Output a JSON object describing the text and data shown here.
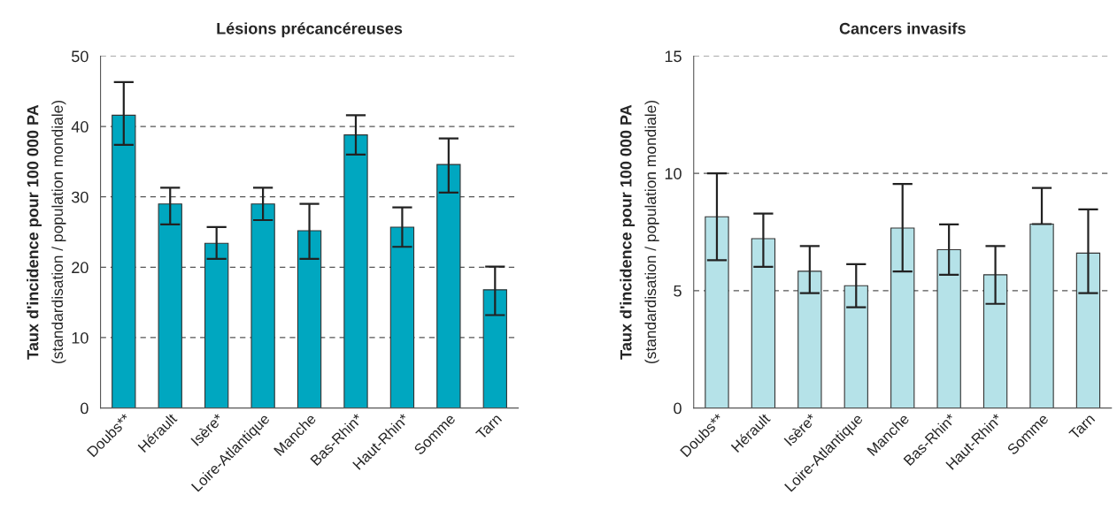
{
  "chart_data": [
    {
      "type": "bar",
      "title": "Lésions précancéreuses",
      "ylabel": "Taux d'incidence pour 100 000 PA\n(standardisation / population mondiale)",
      "categories": [
        "Doubs**",
        "Hérault",
        "Isère*",
        "Loire-Atlantique",
        "Manche",
        "Bas-Rhin*",
        "Haut-Rhin*",
        "Somme",
        "Tarn"
      ],
      "series": [
        {
          "color": "#00a7c0",
          "values": [
            41.6,
            29.0,
            23.4,
            29.0,
            25.2,
            38.8,
            25.7,
            34.6,
            16.8
          ],
          "errors": [
            [
              37.4,
              46.3
            ],
            [
              26.1,
              31.3
            ],
            [
              21.2,
              25.7
            ],
            [
              26.7,
              31.3
            ],
            [
              21.2,
              29.0
            ],
            [
              36.0,
              41.6
            ],
            [
              22.9,
              28.5
            ],
            [
              30.6,
              38.3
            ],
            [
              13.2,
              20.1
            ]
          ]
        }
      ],
      "ylim": [
        0,
        50
      ],
      "yticks": [
        0,
        10,
        20,
        30,
        40,
        50
      ],
      "grid": "y"
    },
    {
      "type": "bar",
      "title": "Cancers invasifs",
      "ylabel": "Taux d'incidence pour 100 000 PA\n(standardisation / population mondiale)",
      "categories": [
        "Doubs**",
        "Hérault",
        "Isère*",
        "Loire-Atlantique",
        "Manche",
        "Bas-Rhin*",
        "Haut-Rhin*",
        "Somme",
        "Tarn"
      ],
      "series": [
        {
          "color": "#b5e2e8",
          "values": [
            8.15,
            7.22,
            5.83,
            5.21,
            7.67,
            6.75,
            5.68,
            7.84,
            6.6
          ],
          "errors": [
            [
              6.3,
              10.0
            ],
            [
              6.02,
              8.29
            ],
            [
              4.9,
              6.9
            ],
            [
              4.29,
              6.13
            ],
            [
              5.82,
              9.55
            ],
            [
              5.68,
              7.83
            ],
            [
              4.44,
              6.9
            ],
            [
              7.84,
              9.38
            ],
            [
              4.9,
              8.47
            ]
          ]
        }
      ],
      "ylim": [
        0,
        15
      ],
      "yticks": [
        0,
        5,
        10,
        15
      ],
      "grid": "y"
    }
  ]
}
